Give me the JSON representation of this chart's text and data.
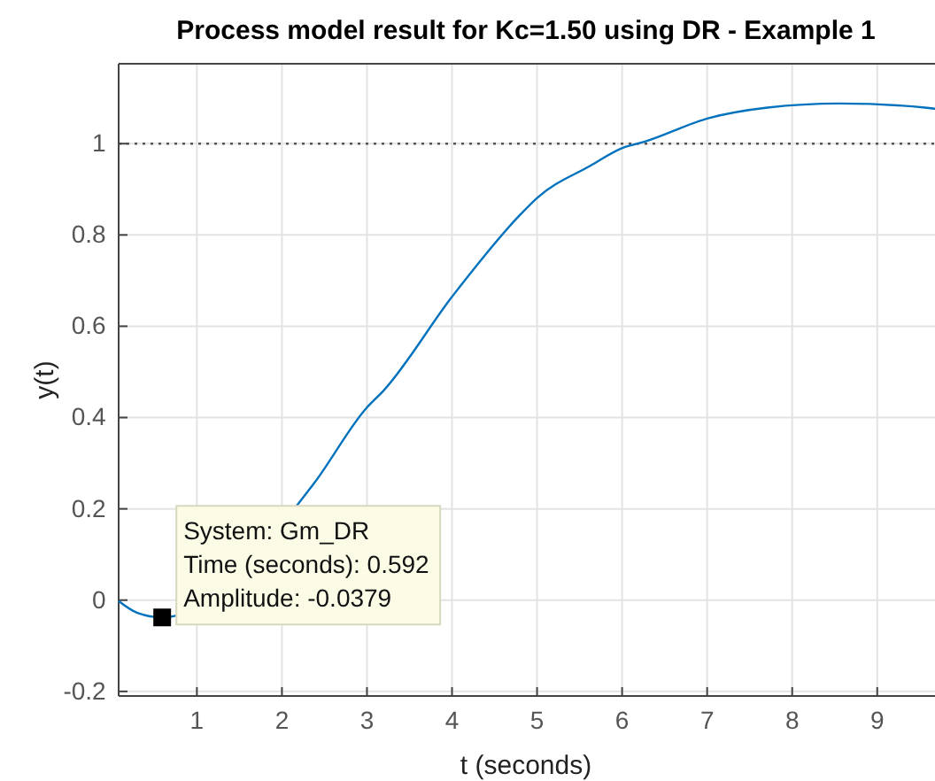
{
  "chart_data": {
    "type": "line",
    "title": "Process model result for Kc=1.50 using DR - Example 1",
    "xlabel": "t (seconds)",
    "ylabel": "y(t)",
    "xlim": [
      0.08,
      9.7
    ],
    "ylim": [
      -0.21,
      1.175
    ],
    "xticks": [
      1,
      2,
      3,
      4,
      5,
      6,
      7,
      8,
      9
    ],
    "yticks": [
      -0.2,
      0,
      0.2,
      0.4,
      0.6,
      0.8,
      1
    ],
    "grid": true,
    "series": [
      {
        "color": "#0072bd",
        "x": [
          0.08,
          0.3,
          0.592,
          2.37,
          2.99,
          3.2,
          4.01,
          4.79,
          5.0,
          5.63,
          6.01,
          6.26,
          7.02,
          7.71,
          8.55,
          9.56,
          9.7
        ],
        "values": [
          -0.002,
          -0.028,
          -0.0379,
          0.254,
          0.42,
          0.46,
          0.667,
          0.842,
          0.881,
          0.952,
          0.991,
          1.004,
          1.056,
          1.079,
          1.088,
          1.079,
          1.076
        ]
      }
    ],
    "ref_lines": [
      {
        "axis": "y",
        "value": 1,
        "color": "#555555",
        "line_style": "dotted"
      }
    ],
    "annotations": [
      {
        "text": "System: Gm_DR\nTime (seconds): 0.592\nAmplitude: -0.0379",
        "x": 0.592,
        "y": -0.0379
      }
    ]
  }
}
